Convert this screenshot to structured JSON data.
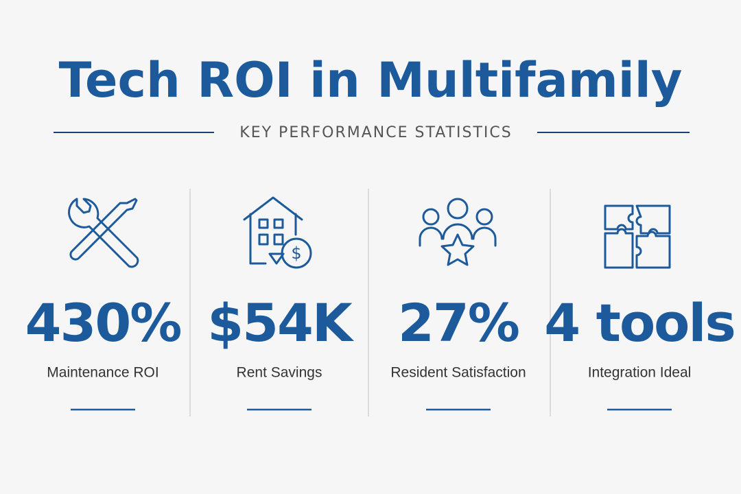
{
  "header": {
    "title": "Tech ROI in Multifamily",
    "subtitle": "KEY PERFORMANCE STATISTICS"
  },
  "stats": [
    {
      "value": "430%",
      "label": "Maintenance ROI"
    },
    {
      "value": "$54K",
      "label": "Rent Savings"
    },
    {
      "value": "27%",
      "label": "Resident Satisfaction"
    },
    {
      "value": "4 tools",
      "label": "Integration Ideal"
    }
  ]
}
